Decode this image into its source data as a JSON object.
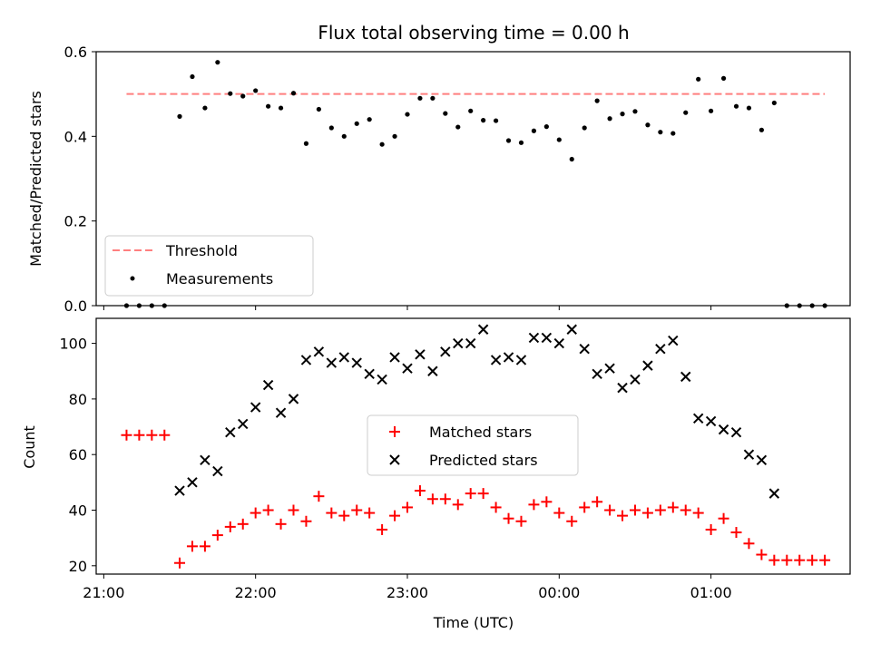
{
  "title": "Flux total observing time = 0.00 h",
  "top_panel": {
    "ylabel": "Matched/Predicted stars",
    "legend": {
      "threshold": "Threshold",
      "measurements": "Measurements"
    }
  },
  "bottom_panel": {
    "ylabel": "Count",
    "xlabel": "Time (UTC)",
    "legend": {
      "matched": "Matched stars",
      "predicted": "Predicted stars"
    }
  },
  "colors": {
    "threshold": "#ff7f7f",
    "matched": "#ff0000",
    "predicted": "#000000",
    "measurements": "#000000"
  },
  "chart_data": [
    {
      "type": "scatter",
      "title": "Flux total observing time = 0.00 h",
      "xlabel": "",
      "ylabel": "Matched/Predicted stars",
      "xlim": [
        "20:57",
        "01:55"
      ],
      "ylim": [
        0,
        0.6
      ],
      "yticks": [
        "0.0",
        "0.2",
        "0.4",
        "0.6"
      ],
      "grid": false,
      "legend_position": "lower-left",
      "threshold": {
        "name": "Threshold",
        "value": 0.5,
        "x_range": [
          "21:09",
          "01:45"
        ],
        "style": "dashed"
      },
      "series": [
        {
          "name": "Measurements",
          "x": [
            "21:09",
            "21:14",
            "21:19",
            "21:24",
            "21:30",
            "21:35",
            "21:40",
            "21:45",
            "21:50",
            "21:55",
            "22:00",
            "22:05",
            "22:10",
            "22:15",
            "22:20",
            "22:25",
            "22:30",
            "22:35",
            "22:40",
            "22:45",
            "22:50",
            "22:55",
            "23:00",
            "23:05",
            "23:10",
            "23:15",
            "23:20",
            "23:25",
            "23:30",
            "23:35",
            "23:40",
            "23:45",
            "23:50",
            "23:55",
            "00:00",
            "00:05",
            "00:10",
            "00:15",
            "00:20",
            "00:25",
            "00:30",
            "00:35",
            "00:40",
            "00:45",
            "00:50",
            "00:55",
            "01:00",
            "01:05",
            "01:10",
            "01:15",
            "01:20",
            "01:25",
            "01:30",
            "01:35",
            "01:40",
            "01:45"
          ],
          "y": [
            0,
            0,
            0,
            0,
            0.447,
            0.541,
            0.467,
            0.575,
            0.501,
            0.495,
            0.508,
            0.471,
            0.467,
            0.502,
            0.383,
            0.464,
            0.42,
            0.4,
            0.43,
            0.44,
            0.381,
            0.4,
            0.452,
            0.49,
            0.49,
            0.454,
            0.422,
            0.46,
            0.438,
            0.437,
            0.39,
            0.385,
            0.413,
            0.423,
            0.392,
            0.346,
            0.42,
            0.484,
            0.442,
            0.453,
            0.459,
            0.427,
            0.41,
            0.407,
            0.456,
            0.535,
            0.46,
            0.537,
            0.471,
            0.467,
            0.415,
            0.479,
            0,
            0,
            0,
            0
          ]
        }
      ]
    },
    {
      "type": "scatter",
      "title": "",
      "xlabel": "Time (UTC)",
      "ylabel": "Count",
      "xlim": [
        "20:57",
        "01:55"
      ],
      "xticks": [
        "21:00",
        "22:00",
        "23:00",
        "00:00",
        "01:00"
      ],
      "ylim": [
        17,
        109
      ],
      "yticks": [
        "20",
        "40",
        "60",
        "80",
        "100"
      ],
      "grid": false,
      "legend_position": "center",
      "series": [
        {
          "name": "Matched stars",
          "marker": "+",
          "x": [
            "21:09",
            "21:14",
            "21:19",
            "21:24",
            "21:30",
            "21:35",
            "21:40",
            "21:45",
            "21:50",
            "21:55",
            "22:00",
            "22:05",
            "22:10",
            "22:15",
            "22:20",
            "22:25",
            "22:30",
            "22:35",
            "22:40",
            "22:45",
            "22:50",
            "22:55",
            "23:00",
            "23:05",
            "23:10",
            "23:15",
            "23:20",
            "23:25",
            "23:30",
            "23:35",
            "23:40",
            "23:45",
            "23:50",
            "23:55",
            "00:00",
            "00:05",
            "00:10",
            "00:15",
            "00:20",
            "00:25",
            "00:30",
            "00:35",
            "00:40",
            "00:45",
            "00:50",
            "00:55",
            "01:00",
            "01:05",
            "01:10",
            "01:15",
            "01:20",
            "01:25",
            "01:30",
            "01:35",
            "01:40",
            "01:45"
          ],
          "y": [
            67,
            67,
            67,
            67,
            21,
            27,
            27,
            31,
            34,
            35,
            39,
            40,
            35,
            40,
            36,
            45,
            39,
            38,
            40,
            39,
            33,
            38,
            41,
            47,
            44,
            44,
            42,
            46,
            46,
            41,
            37,
            36,
            42,
            43,
            39,
            36,
            41,
            43,
            40,
            38,
            40,
            39,
            40,
            41,
            40,
            39,
            33,
            37,
            32,
            28,
            24,
            22,
            22,
            22,
            22,
            22
          ]
        },
        {
          "name": "Predicted stars",
          "marker": "x",
          "x": [
            "21:30",
            "21:35",
            "21:40",
            "21:45",
            "21:50",
            "21:55",
            "22:00",
            "22:05",
            "22:10",
            "22:15",
            "22:20",
            "22:25",
            "22:30",
            "22:35",
            "22:40",
            "22:45",
            "22:50",
            "22:55",
            "23:00",
            "23:05",
            "23:10",
            "23:15",
            "23:20",
            "23:25",
            "23:30",
            "23:35",
            "23:40",
            "23:45",
            "23:50",
            "23:55",
            "00:00",
            "00:05",
            "00:10",
            "00:15",
            "00:20",
            "00:25",
            "00:30",
            "00:35",
            "00:40",
            "00:45",
            "00:50",
            "00:55",
            "01:00",
            "01:05",
            "01:10",
            "01:15",
            "01:20",
            "01:25"
          ],
          "y": [
            47,
            50,
            58,
            54,
            68,
            71,
            77,
            85,
            75,
            80,
            94,
            97,
            93,
            95,
            93,
            89,
            87,
            95,
            91,
            96,
            90,
            97,
            100,
            100,
            105,
            94,
            95,
            94,
            102,
            102,
            100,
            105,
            98,
            89,
            91,
            84,
            87,
            92,
            98,
            101,
            88,
            73,
            72,
            69,
            68,
            60,
            58,
            46
          ]
        }
      ]
    }
  ]
}
